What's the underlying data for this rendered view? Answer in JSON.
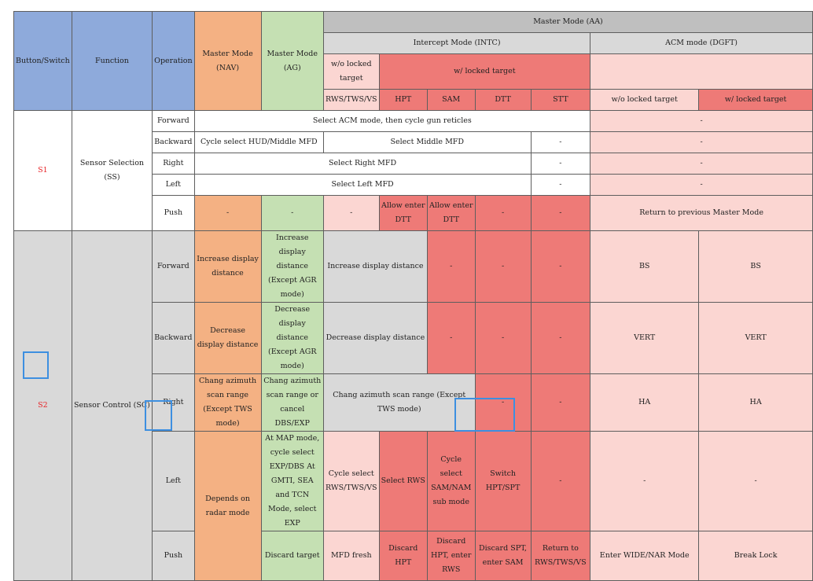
{
  "header": {
    "button_switch": "Button/Switch",
    "function": "Function",
    "operation": "Operation",
    "nav": "Master Mode (NAV)",
    "ag": "Master Mode (AG)",
    "aa": "Master Mode (AA)",
    "intc": "Intercept Mode (INTC)",
    "dgft": "ACM mode (DGFT)",
    "wo_locked": "w/o locked target",
    "w_locked": "w/ locked target",
    "rws": "RWS/TWS/VS",
    "hpt": "HPT",
    "sam": "SAM",
    "dtt": "DTT",
    "stt": "STT",
    "acm_wo": "w/o locked target",
    "acm_w": "w/ locked target"
  },
  "s1": {
    "button": "S1",
    "function": "Sensor Selection (SS)",
    "forward": {
      "op": "Forward",
      "main": "Select ACM mode, then cycle gun reticles",
      "acm": "-"
    },
    "backward": {
      "op": "Backward",
      "navag": "Cycle select HUD/Middle MFD",
      "intc": "Select Middle MFD",
      "stt": "-",
      "acm": "-"
    },
    "right": {
      "op": "Right",
      "main": "Select Right MFD",
      "stt": "-",
      "acm": "-"
    },
    "left": {
      "op": "Left",
      "main": "Select Left MFD",
      "stt": "-",
      "acm": "-"
    },
    "push": {
      "op": "Push",
      "nav": "-",
      "ag": "-",
      "rws": "-",
      "hpt": "Allow enter DTT",
      "sam": "Allow enter DTT",
      "dtt": "-",
      "stt": "-",
      "acm": "Return to previous Master Mode"
    }
  },
  "s2": {
    "button": "S2",
    "function": "Sensor Control (SC)",
    "forward": {
      "op": "Forward",
      "nav": "Increase display distance",
      "ag": "Increase display distance (Except AGR mode)",
      "rwshpt": "Increase display distance",
      "sam": "-",
      "dtt": "-",
      "stt": "-",
      "acm_wo": "BS",
      "acm_w": "BS"
    },
    "backward": {
      "op": "Backward",
      "nav": "Decrease display distance",
      "ag": "Decrease display distance (Except AGR mode)",
      "rwshpt": "Decrease display distance",
      "sam": "-",
      "dtt": "-",
      "stt": "-",
      "acm_wo": "VERT",
      "acm_w": "VERT"
    },
    "right": {
      "op": "Right",
      "nav": "Chang azimuth scan range (Except TWS mode)",
      "ag": "Chang azimuth scan range or cancel DBS/EXP",
      "intc": "Chang azimuth scan range (Except TWS mode)",
      "dtt": "-",
      "stt": "-",
      "acm_wo": "HA",
      "acm_w": "HA"
    },
    "left": {
      "op": "Left",
      "nav": "Depends on radar mode",
      "ag": "At MAP mode, cycle select EXP/DBS At GMTI, SEA and TCN Mode, select EXP",
      "rws": "Cycle select RWS/TWS/VS",
      "hpt": "Select RWS",
      "sam": "Cycle select SAM/NAM sub mode",
      "dtt": "Switch HPT/SPT",
      "stt": "-",
      "acm_wo": "-",
      "acm_w": "-"
    },
    "push": {
      "op": "Push",
      "ag": "Discard target",
      "rws": "MFD fresh",
      "hpt": "Discard HPT",
      "sam": "Discard HPT, enter RWS",
      "dtt": "Discard SPT, enter SAM",
      "stt": "Return to RWS/TWS/VS",
      "acm_wo": "Enter WIDE/NAR Mode",
      "acm_w": "Break Lock"
    }
  }
}
